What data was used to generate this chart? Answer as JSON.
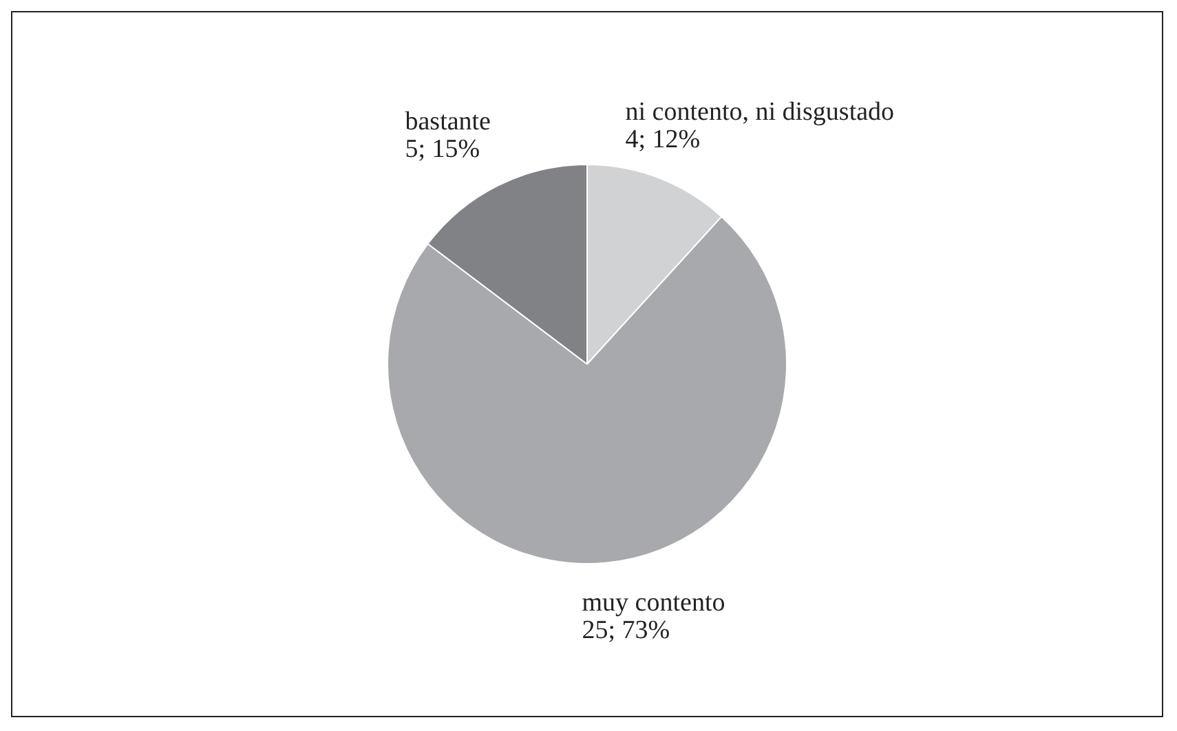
{
  "chart_data": {
    "type": "pie",
    "categories": [
      "ni contento, ni disgustado",
      "muy contento",
      "bastante"
    ],
    "values": [
      4,
      25,
      5
    ],
    "colors": [
      "#d1d2d4",
      "#a7a9ac",
      "#808285"
    ],
    "value_labels": [
      "4; 12%",
      "25; 73%",
      "5; 15%"
    ],
    "legend": false
  }
}
